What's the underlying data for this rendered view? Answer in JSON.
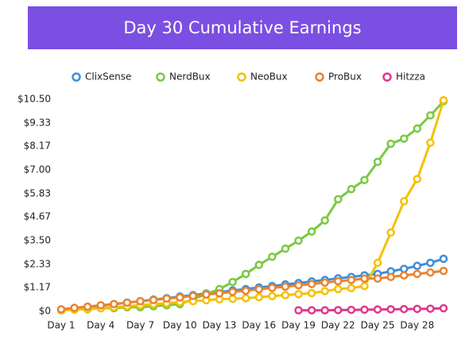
{
  "chart_data": {
    "type": "line",
    "title": "Day 30 Cumulative Earnings",
    "categories": [
      "Day 1",
      null,
      null,
      "Day 4",
      null,
      null,
      "Day 7",
      null,
      null,
      "Day 10",
      null,
      null,
      "Day 13",
      null,
      null,
      "Day 16",
      null,
      null,
      "Day 19",
      null,
      null,
      "Day 22",
      null,
      null,
      "Day 25",
      null,
      null,
      "Day 28",
      null,
      null
    ],
    "series": [
      {
        "name": "ClixSense",
        "color": "#3d8fd9",
        "values": [
          0.05,
          0.12,
          0.2,
          0.28,
          0.35,
          0.43,
          0.5,
          0.58,
          0.65,
          0.73,
          0.8,
          0.88,
          0.95,
          1.03,
          1.1,
          1.18,
          1.25,
          1.33,
          1.4,
          1.48,
          1.55,
          1.63,
          1.7,
          1.78,
          1.85,
          1.98,
          2.1,
          2.25,
          2.4,
          2.6
        ]
      },
      {
        "name": "NerdBux",
        "color": "#7ac943",
        "values": [
          0.05,
          0.1,
          0.1,
          0.15,
          0.15,
          0.2,
          0.2,
          0.25,
          0.3,
          0.35,
          0.6,
          0.85,
          1.1,
          1.45,
          1.85,
          2.3,
          2.7,
          3.1,
          3.5,
          3.95,
          4.5,
          5.55,
          6.05,
          6.5,
          7.4,
          8.3,
          8.55,
          9.05,
          9.7,
          10.4
        ]
      },
      {
        "name": "NeoBux",
        "color": "#f5c000",
        "values": [
          0.05,
          0.08,
          0.12,
          0.15,
          0.2,
          0.25,
          0.3,
          0.35,
          0.4,
          0.45,
          0.5,
          0.55,
          0.6,
          0.62,
          0.65,
          0.7,
          0.75,
          0.8,
          0.85,
          0.9,
          1.0,
          1.1,
          1.15,
          1.25,
          2.4,
          3.9,
          5.45,
          6.55,
          8.35,
          10.45
        ]
      },
      {
        "name": "ProBux",
        "color": "#ea8330",
        "values": [
          0.1,
          0.17,
          0.23,
          0.3,
          0.36,
          0.43,
          0.5,
          0.56,
          0.63,
          0.69,
          0.76,
          0.83,
          0.89,
          0.96,
          1.02,
          1.09,
          1.16,
          1.22,
          1.29,
          1.35,
          1.42,
          1.49,
          1.55,
          1.62,
          1.62,
          1.7,
          1.78,
          1.85,
          1.92,
          2.0
        ]
      },
      {
        "name": "Hitzza",
        "color": "#e0388e",
        "values": [
          null,
          null,
          null,
          null,
          null,
          null,
          null,
          null,
          null,
          null,
          null,
          null,
          null,
          null,
          null,
          null,
          null,
          null,
          0.05,
          0.05,
          0.05,
          0.06,
          0.07,
          0.08,
          0.09,
          0.1,
          0.11,
          0.12,
          0.13,
          0.15
        ]
      }
    ],
    "ylim": [
      0,
      10.5
    ],
    "yticks": [
      {
        "value": 0,
        "label": "$0"
      },
      {
        "value": 1.17,
        "label": "$1.17"
      },
      {
        "value": 2.33,
        "label": "$2.33"
      },
      {
        "value": 3.5,
        "label": "$3.50"
      },
      {
        "value": 4.67,
        "label": "$4.67"
      },
      {
        "value": 5.83,
        "label": "$5.83"
      },
      {
        "value": 7,
        "label": "$7.00"
      },
      {
        "value": 8.17,
        "label": "$8.17"
      },
      {
        "value": 9.33,
        "label": "$9.33"
      },
      {
        "value": 10.5,
        "label": "$10.50"
      }
    ],
    "grid": false
  }
}
